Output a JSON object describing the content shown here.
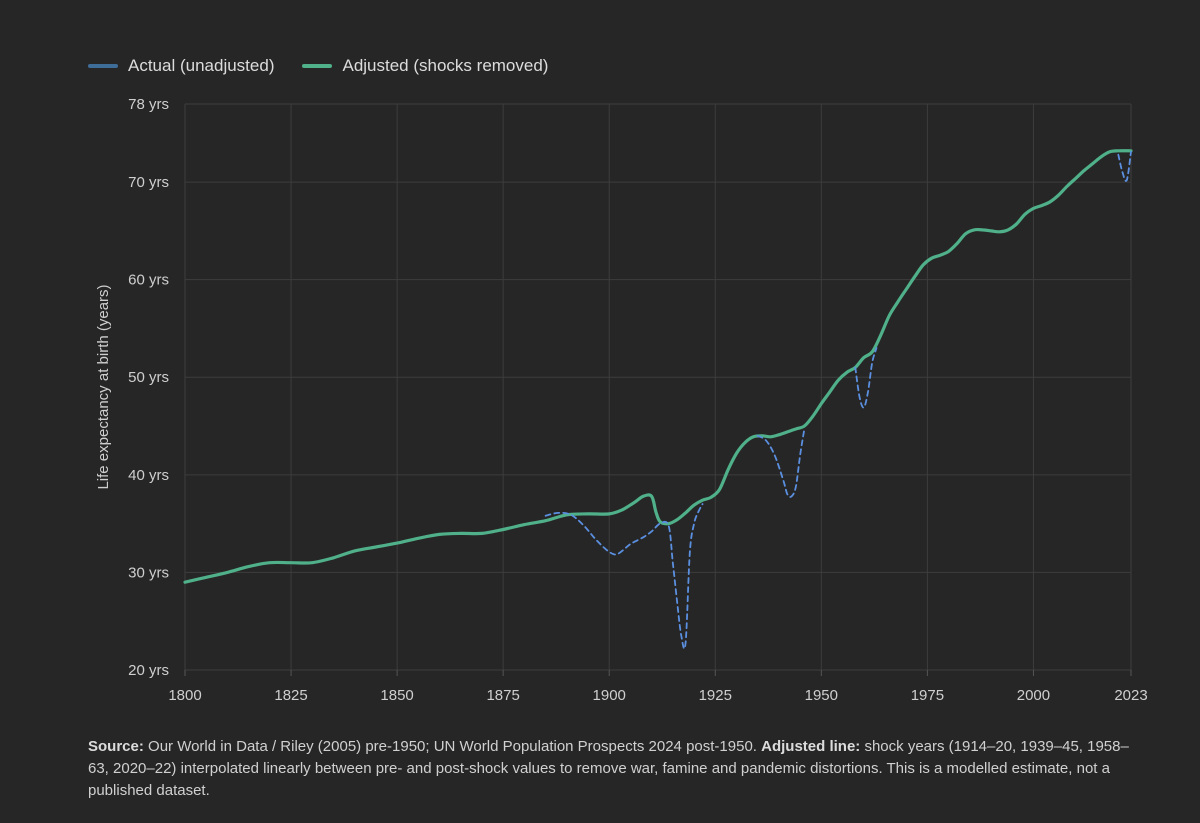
{
  "legend": {
    "actual_label": "Actual (unadjusted)",
    "adjusted_label": "Adjusted (shocks removed)"
  },
  "colors": {
    "background": "#262626",
    "grid": "#3d3d3d",
    "actual": "#5b8fe0",
    "actual_legend": "#3f6d9a",
    "adjusted": "#4fb08a",
    "text": "#cfcfcf"
  },
  "chart_data": {
    "type": "line",
    "ylabel": "Life expectancy at birth (years)",
    "xlabel": "",
    "xlim": [
      1800,
      2023
    ],
    "ylim": [
      20,
      78
    ],
    "x_ticks": [
      1800,
      1825,
      1850,
      1875,
      1900,
      1925,
      1950,
      1975,
      2000,
      2023
    ],
    "y_ticks": [
      20,
      30,
      40,
      50,
      60,
      70,
      78
    ],
    "y_tick_labels": [
      "20 yrs",
      "30 yrs",
      "40 yrs",
      "50 yrs",
      "60 yrs",
      "70 yrs",
      "78 yrs"
    ],
    "grid": true,
    "legend_position": "top-left",
    "series": [
      {
        "name": "Actual (unadjusted)",
        "style": "dashed",
        "points": [
          [
            1885,
            35.8
          ],
          [
            1888,
            36.1
          ],
          [
            1891,
            35.9
          ],
          [
            1894,
            34.8
          ],
          [
            1897,
            33.3
          ],
          [
            1900,
            32.1
          ],
          [
            1902,
            31.9
          ],
          [
            1905,
            32.9
          ],
          [
            1908,
            33.6
          ],
          [
            1910,
            34.2
          ],
          [
            1912,
            35.0
          ],
          [
            1914,
            34.8
          ],
          [
            1915,
            31.0
          ],
          [
            1916,
            27.0
          ],
          [
            1917,
            23.5
          ],
          [
            1918,
            22.8
          ],
          [
            1919,
            32.0
          ],
          [
            1920,
            35.0
          ],
          [
            1921,
            36.2
          ],
          [
            1922,
            37.0
          ],
          [
            1935,
            44.0
          ],
          [
            1937,
            43.5
          ],
          [
            1939,
            42.0
          ],
          [
            1941,
            39.5
          ],
          [
            1942,
            38.0
          ],
          [
            1943,
            37.8
          ],
          [
            1944,
            38.8
          ],
          [
            1945,
            42.0
          ],
          [
            1946,
            44.7
          ],
          [
            1958,
            51.0
          ],
          [
            1959,
            48.0
          ],
          [
            1960,
            46.9
          ],
          [
            1961,
            48.5
          ],
          [
            1962,
            51.5
          ],
          [
            1963,
            53.0
          ],
          [
            2020,
            72.8
          ],
          [
            2021,
            71.0
          ],
          [
            2022,
            70.2
          ],
          [
            2023,
            73.1
          ]
        ]
      },
      {
        "name": "Adjusted (shocks removed)",
        "style": "solid",
        "points": [
          [
            1800,
            29.0
          ],
          [
            1805,
            29.5
          ],
          [
            1810,
            30.0
          ],
          [
            1815,
            30.6
          ],
          [
            1820,
            31.0
          ],
          [
            1825,
            31.0
          ],
          [
            1830,
            31.0
          ],
          [
            1835,
            31.5
          ],
          [
            1840,
            32.2
          ],
          [
            1845,
            32.6
          ],
          [
            1850,
            33.0
          ],
          [
            1855,
            33.5
          ],
          [
            1860,
            33.9
          ],
          [
            1865,
            34.0
          ],
          [
            1870,
            34.0
          ],
          [
            1875,
            34.4
          ],
          [
            1880,
            34.9
          ],
          [
            1885,
            35.3
          ],
          [
            1890,
            35.9
          ],
          [
            1895,
            36.0
          ],
          [
            1900,
            36.0
          ],
          [
            1903,
            36.4
          ],
          [
            1906,
            37.2
          ],
          [
            1908,
            37.8
          ],
          [
            1910,
            37.8
          ],
          [
            1911,
            36.2
          ],
          [
            1912,
            35.2
          ],
          [
            1914,
            35.0
          ],
          [
            1916,
            35.4
          ],
          [
            1918,
            36.1
          ],
          [
            1920,
            36.9
          ],
          [
            1922,
            37.4
          ],
          [
            1924,
            37.7
          ],
          [
            1926,
            38.5
          ],
          [
            1928,
            40.5
          ],
          [
            1930,
            42.2
          ],
          [
            1932,
            43.3
          ],
          [
            1934,
            43.9
          ],
          [
            1936,
            44.0
          ],
          [
            1938,
            43.9
          ],
          [
            1940,
            44.1
          ],
          [
            1942,
            44.4
          ],
          [
            1944,
            44.7
          ],
          [
            1946,
            45.0
          ],
          [
            1948,
            46.0
          ],
          [
            1950,
            47.3
          ],
          [
            1952,
            48.5
          ],
          [
            1954,
            49.7
          ],
          [
            1956,
            50.5
          ],
          [
            1958,
            51.0
          ],
          [
            1960,
            52.0
          ],
          [
            1962,
            52.6
          ],
          [
            1964,
            54.3
          ],
          [
            1966,
            56.3
          ],
          [
            1968,
            57.7
          ],
          [
            1970,
            59.0
          ],
          [
            1972,
            60.3
          ],
          [
            1974,
            61.5
          ],
          [
            1976,
            62.2
          ],
          [
            1978,
            62.5
          ],
          [
            1980,
            62.9
          ],
          [
            1982,
            63.7
          ],
          [
            1984,
            64.7
          ],
          [
            1986,
            65.1
          ],
          [
            1988,
            65.1
          ],
          [
            1990,
            65.0
          ],
          [
            1992,
            64.9
          ],
          [
            1994,
            65.1
          ],
          [
            1996,
            65.7
          ],
          [
            1998,
            66.7
          ],
          [
            2000,
            67.3
          ],
          [
            2002,
            67.6
          ],
          [
            2004,
            68.0
          ],
          [
            2006,
            68.7
          ],
          [
            2008,
            69.6
          ],
          [
            2010,
            70.4
          ],
          [
            2012,
            71.2
          ],
          [
            2014,
            71.9
          ],
          [
            2016,
            72.6
          ],
          [
            2018,
            73.1
          ],
          [
            2020,
            73.2
          ],
          [
            2023,
            73.2
          ]
        ]
      }
    ]
  },
  "footnote": {
    "source_label": "Source:",
    "source_text": " Our World in Data / Riley (2005) pre-1950; UN World Population Prospects 2024 post-1950. ",
    "adjusted_label": "Adjusted line:",
    "adjusted_text": " shock years (1914–20, 1939–45, 1958–63, 2020–22) interpolated linearly between pre- and post-shock values to remove war, famine and pandemic distortions. This is a modelled estimate, not a published dataset."
  }
}
